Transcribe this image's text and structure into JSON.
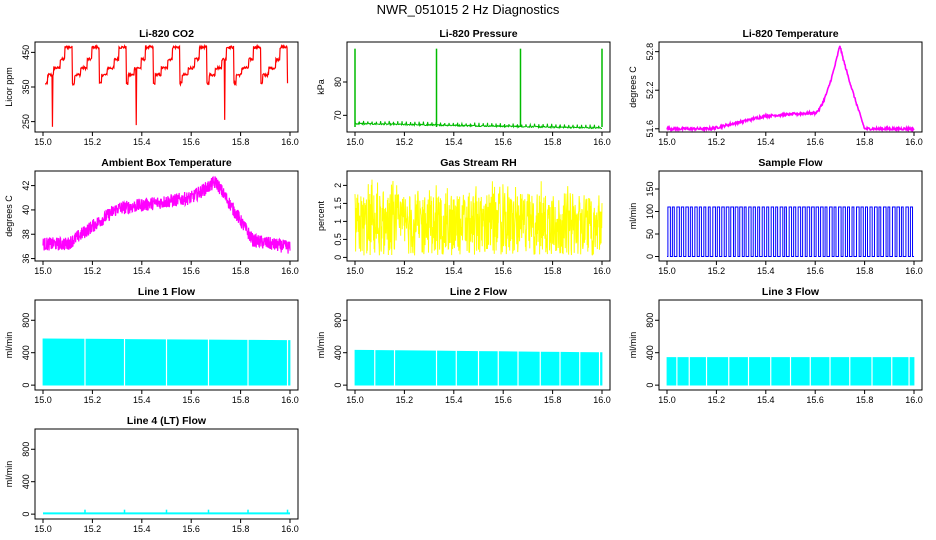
{
  "page_title": "NWR_051015 2 Hz Diagnostics",
  "chart_data": [
    {
      "id": "co2",
      "type": "line",
      "title": "Li-820 CO2",
      "ylabel": "Licor ppm",
      "color": "#ff0000",
      "xlim": [
        15.0,
        16.0
      ],
      "ylim": [
        220,
        480
      ],
      "yticks": [
        250,
        350,
        450
      ],
      "xticks": [
        "15.0",
        "15.2",
        "15.4",
        "15.6",
        "15.8",
        "16.0"
      ],
      "pattern": "co2_steps",
      "base_levels": [
        370,
        385,
        400,
        420,
        440,
        470
      ]
    },
    {
      "id": "pressure",
      "type": "line",
      "title": "Li-820 Pressure",
      "ylabel": "kPa",
      "color": "#00bb00",
      "xlim": [
        15.0,
        16.0
      ],
      "ylim": [
        65,
        92
      ],
      "yticks": [
        70,
        80
      ],
      "xticks": [
        "15.0",
        "15.2",
        "15.4",
        "15.6",
        "15.8",
        "16.0"
      ],
      "pattern": "pressure",
      "baseline": 67.5,
      "spikes_x": [
        15.0,
        15.33,
        15.67,
        16.0
      ],
      "spike_peak": 90
    },
    {
      "id": "licor_temp",
      "type": "line",
      "title": "Li-820 Temperature",
      "ylabel": "degrees C",
      "color": "#ff00ff",
      "xlim": [
        15.0,
        16.0
      ],
      "ylim": [
        51.55,
        52.95
      ],
      "yticks": [
        51.6,
        52.2,
        52.8
      ],
      "xticks": [
        "15.0",
        "15.2",
        "15.4",
        "15.6",
        "15.8",
        "16.0"
      ],
      "pattern": "licor_temp",
      "start": 51.6,
      "plateau": 51.8,
      "peak": 52.9,
      "peak_x": 15.7
    },
    {
      "id": "box_temp",
      "type": "line",
      "title": "Ambient Box Temperature",
      "ylabel": "degrees C",
      "color": "#ff00ff",
      "xlim": [
        15.0,
        16.0
      ],
      "ylim": [
        35.8,
        43.2
      ],
      "yticks": [
        36,
        38,
        40,
        42
      ],
      "xticks": [
        "15.0",
        "15.2",
        "15.4",
        "15.6",
        "15.8",
        "16.0"
      ],
      "pattern": "box_temp",
      "start": 37.2,
      "mid": 40.5,
      "peak": 42.3,
      "end": 36.8
    },
    {
      "id": "rh",
      "type": "line",
      "title": "Gas Stream RH",
      "ylabel": "percent",
      "color": "#ffff00",
      "xlim": [
        15.0,
        16.0
      ],
      "ylim": [
        -0.1,
        2.4
      ],
      "yticks": [
        0.0,
        0.5,
        1.0,
        1.5,
        2.0
      ],
      "xticks": [
        "15.0",
        "15.2",
        "15.4",
        "15.6",
        "15.8",
        "16.0"
      ],
      "pattern": "rh",
      "mean": 0.9,
      "max": 2.2
    },
    {
      "id": "sample_flow",
      "type": "line",
      "title": "Sample Flow",
      "ylabel": "ml/min",
      "color": "#0000ff",
      "xlim": [
        15.0,
        16.0
      ],
      "ylim": [
        -10,
        190
      ],
      "yticks": [
        0,
        50,
        100,
        150
      ],
      "xticks": [
        "15.0",
        "15.2",
        "15.4",
        "15.6",
        "15.8",
        "16.0"
      ],
      "pattern": "pulses",
      "high": 110,
      "low": 0
    },
    {
      "id": "line1",
      "type": "area",
      "title": "Line 1 Flow",
      "ylabel": "ml/min",
      "color": "#00ffff",
      "xlim": [
        15.0,
        16.0
      ],
      "ylim": [
        -60,
        1050
      ],
      "yticks": [
        0,
        400,
        800
      ],
      "xticks": [
        "15.0",
        "15.2",
        "15.4",
        "15.6",
        "15.8",
        "16.0"
      ],
      "pattern": "flow",
      "top_start": 570,
      "top_end": 550,
      "gaps_x": [
        15.17,
        15.33,
        15.5,
        15.67,
        15.83,
        15.99
      ]
    },
    {
      "id": "line2",
      "type": "area",
      "title": "Line 2 Flow",
      "ylabel": "ml/min",
      "color": "#00ffff",
      "xlim": [
        15.0,
        16.0
      ],
      "ylim": [
        -60,
        1050
      ],
      "yticks": [
        0,
        400,
        800
      ],
      "xticks": [
        "15.0",
        "15.2",
        "15.4",
        "15.6",
        "15.8",
        "16.0"
      ],
      "pattern": "flow",
      "top_start": 430,
      "top_end": 400,
      "gaps_x": [
        15.08,
        15.16,
        15.33,
        15.41,
        15.5,
        15.58,
        15.66,
        15.75,
        15.83,
        15.91,
        15.99
      ]
    },
    {
      "id": "line3",
      "type": "area",
      "title": "Line 3 Flow",
      "ylabel": "ml/min",
      "color": "#00ffff",
      "xlim": [
        15.0,
        16.0
      ],
      "ylim": [
        -60,
        1050
      ],
      "yticks": [
        0,
        400,
        800
      ],
      "xticks": [
        "15.0",
        "15.2",
        "15.4",
        "15.6",
        "15.8",
        "16.0"
      ],
      "pattern": "flow",
      "top_start": 340,
      "top_end": 340,
      "gaps_x": [
        15.04,
        15.09,
        15.16,
        15.25,
        15.33,
        15.42,
        15.5,
        15.58,
        15.66,
        15.74,
        15.83,
        15.91,
        15.98
      ]
    },
    {
      "id": "line4",
      "type": "line",
      "title": "Line 4 (LT) Flow",
      "ylabel": "ml/min",
      "color": "#00ffff",
      "xlim": [
        15.0,
        16.0
      ],
      "ylim": [
        -60,
        1050
      ],
      "yticks": [
        0,
        400,
        800
      ],
      "xticks": [
        "15.0",
        "15.2",
        "15.4",
        "15.6",
        "15.8",
        "16.0"
      ],
      "pattern": "spikes_low",
      "baseline": 10,
      "spikes_x": [
        15.17,
        15.33,
        15.5,
        15.67,
        15.83,
        15.99
      ],
      "spike_peak": 55
    }
  ]
}
